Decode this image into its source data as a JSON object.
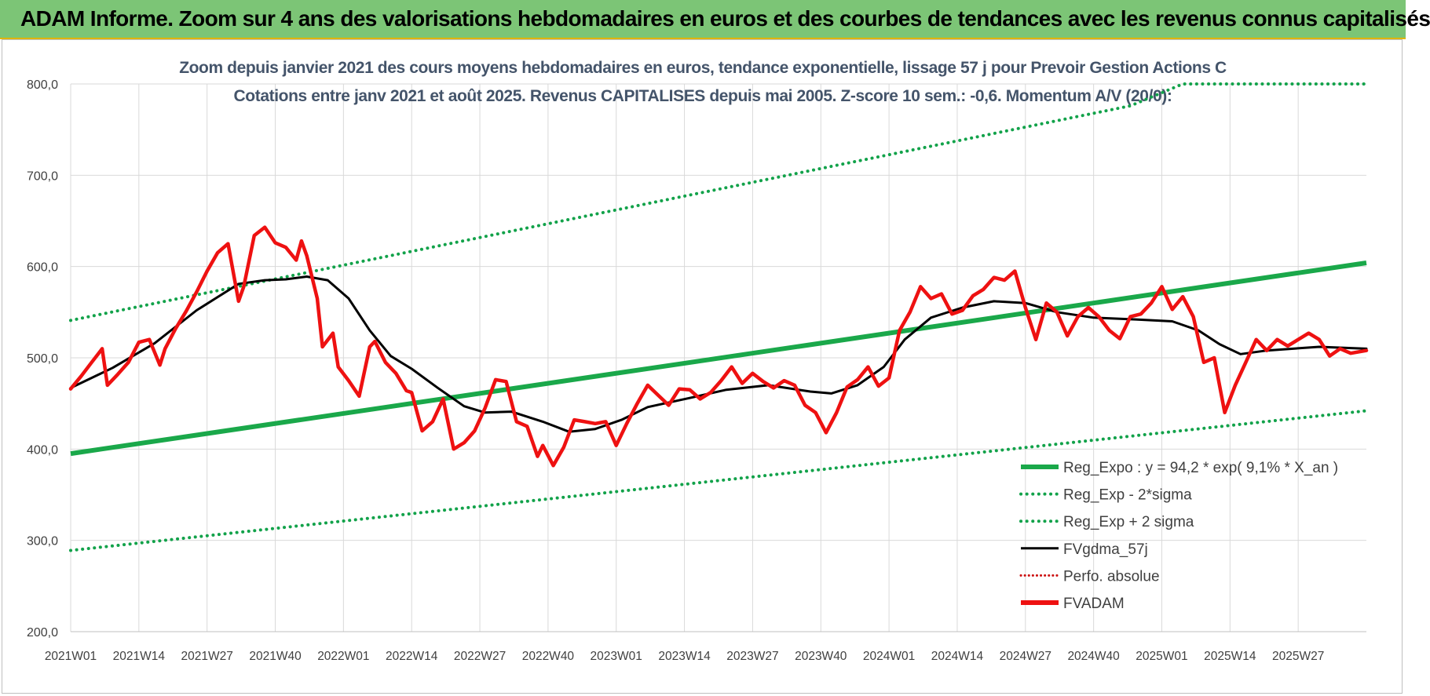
{
  "header": {
    "title": "ADAM Informe. Zoom sur 4 ans des valorisations hebdomadaires en euros et des courbes de tendances avec les revenus connus capitalisés"
  },
  "chart_data": {
    "type": "line",
    "title_lines": [
      "Zoom depuis janvier 2021 des cours moyens hebdomadaires en euros, tendance exponentielle, lissage 57 j pour Prevoir Gestion Actions C",
      "Cotations entre janv 2021 et août 2025. Revenus CAPITALISES depuis mai 2005. Z-score 10 sem.: -0,6. Momentum A/V (20/0):"
    ],
    "xlabel": "",
    "ylabel": "",
    "ylim": [
      200,
      800
    ],
    "y_ticks": [
      "200,0",
      "300,0",
      "400,0",
      "500,0",
      "600,0",
      "700,0",
      "800,0"
    ],
    "x_ticks": [
      "2021W01",
      "2021W14",
      "2021W27",
      "2021W40",
      "2022W01",
      "2022W14",
      "2022W27",
      "2022W40",
      "2023W01",
      "2023W14",
      "2023W27",
      "2023W40",
      "2024W01",
      "2024W14",
      "2024W27",
      "2024W40",
      "2025W01",
      "2025W14",
      "2025W27"
    ],
    "x_tick_week_index": [
      0,
      13,
      26,
      39,
      52,
      65,
      78,
      91,
      104,
      117,
      130,
      143,
      156,
      169,
      182,
      195,
      208,
      221,
      234
    ],
    "n_weeks": 248,
    "grid": true,
    "legend_position": "bottom-right",
    "colors": {
      "trend": "#1aa84a",
      "band": "#12a24a",
      "smooth": "#000000",
      "price": "#ee1111",
      "perf": "#cc1111",
      "title": "#44546a",
      "banner": "#7cc576"
    },
    "legend": [
      {
        "label": "Reg_Expo : y = 94,2 * exp( 9,1% *  X_an )",
        "style": "solid-green"
      },
      {
        "label": "Reg_Exp - 2*sigma",
        "style": "dotted-green"
      },
      {
        "label": "Reg_Exp + 2 sigma",
        "style": "dotted-green"
      },
      {
        "label": "FVgdma_57j",
        "style": "solid-black"
      },
      {
        "label": "Perfo. absolue",
        "style": "dotted-red"
      },
      {
        "label": "FVADAM",
        "style": "solid-red-thick"
      }
    ],
    "series": [
      {
        "name": "Reg_Expo : y = 94,2 * exp( 9,1% *  X_an )",
        "x": [
          0,
          247
        ],
        "y": [
          395,
          604
        ]
      },
      {
        "name": "Reg_Exp - 2*sigma",
        "x": [
          0,
          247
        ],
        "y": [
          289,
          442
        ]
      },
      {
        "name": "Reg_Exp + 2 sigma",
        "x": [
          0,
          202,
          212,
          247
        ],
        "y": [
          541,
          776,
          800,
          800
        ]
      },
      {
        "name": "FVgdma_57j",
        "x": [
          0,
          8,
          16,
          24,
          32,
          37,
          41,
          45,
          49,
          53,
          57,
          61,
          65,
          70,
          75,
          79,
          84,
          90,
          95,
          100,
          105,
          110,
          118,
          125,
          133,
          141,
          145,
          150,
          155,
          159,
          164,
          170,
          176,
          182,
          188,
          195,
          203,
          210,
          215,
          219,
          223,
          228,
          238,
          247
        ],
        "y": [
          467,
          489,
          516,
          552,
          581,
          585,
          586,
          589,
          585,
          565,
          530,
          502,
          488,
          467,
          447,
          440,
          441,
          430,
          419,
          422,
          432,
          446,
          456,
          465,
          470,
          463,
          461,
          470,
          490,
          520,
          544,
          555,
          562,
          560,
          550,
          544,
          542,
          540,
          530,
          515,
          504,
          508,
          512,
          510
        ]
      },
      {
        "name": "FVADAM",
        "x": [
          0,
          2,
          4,
          6,
          7,
          9,
          11,
          13,
          15,
          17,
          18,
          20,
          22,
          24,
          26,
          28,
          30,
          32,
          33,
          35,
          37,
          39,
          41,
          43,
          44,
          45,
          47,
          48,
          50,
          51,
          53,
          55,
          57,
          58,
          60,
          62,
          64,
          65,
          67,
          69,
          71,
          73,
          75,
          77,
          79,
          81,
          83,
          85,
          87,
          89,
          90,
          92,
          94,
          96,
          98,
          100,
          102,
          104,
          106,
          108,
          110,
          112,
          114,
          116,
          118,
          120,
          122,
          124,
          126,
          128,
          130,
          132,
          134,
          136,
          138,
          140,
          142,
          144,
          146,
          148,
          150,
          152,
          154,
          156,
          158,
          160,
          162,
          164,
          166,
          168,
          170,
          172,
          174,
          176,
          178,
          180,
          182,
          184,
          186,
          188,
          190,
          192,
          194,
          196,
          198,
          200,
          202,
          204,
          206,
          208,
          210,
          212,
          214,
          216,
          218,
          220,
          222,
          224,
          226,
          228,
          230,
          232,
          234,
          236,
          238,
          240,
          242,
          244,
          247
        ],
        "y": [
          466,
          480,
          495,
          510,
          470,
          482,
          495,
          517,
          520,
          492,
          510,
          532,
          551,
          572,
          595,
          615,
          625,
          562,
          578,
          634,
          643,
          626,
          621,
          607,
          628,
          612,
          565,
          512,
          527,
          490,
          475,
          458,
          512,
          518,
          495,
          483,
          464,
          462,
          420,
          430,
          455,
          400,
          407,
          420,
          445,
          476,
          474,
          430,
          425,
          392,
          404,
          382,
          402,
          432,
          430,
          428,
          430,
          404,
          428,
          450,
          470,
          459,
          448,
          466,
          465,
          455,
          462,
          475,
          490,
          472,
          483,
          474,
          467,
          475,
          470,
          448,
          440,
          418,
          440,
          468,
          476,
          490,
          469,
          478,
          530,
          550,
          578,
          565,
          570,
          548,
          552,
          568,
          575,
          588,
          585,
          595,
          555,
          520,
          560,
          550,
          524,
          545,
          555,
          545,
          530,
          521,
          545,
          548,
          560,
          578,
          553,
          567,
          545,
          495,
          500,
          440,
          470,
          495,
          520,
          508,
          520,
          513,
          520,
          527,
          520,
          502,
          510,
          505,
          508
        ]
      }
    ]
  }
}
